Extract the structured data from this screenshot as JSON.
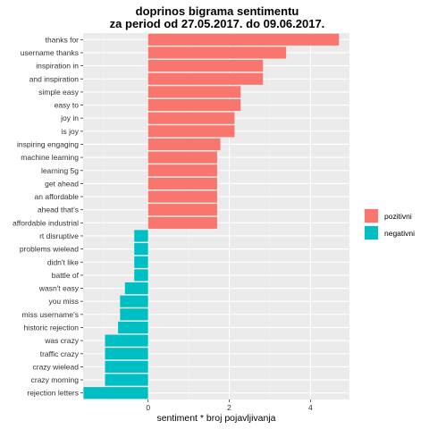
{
  "chart_data": {
    "type": "bar",
    "orientation": "horizontal",
    "title": "doprinos bigrama sentimentu",
    "subtitle": "za period od 27.05.2017. do 09.06.2017.",
    "xlabel": "sentiment * broj pojavljivanja",
    "ylabel": "",
    "xlim": [
      -1.6,
      4.96
    ],
    "xticks": [
      0,
      2,
      4
    ],
    "grid": true,
    "legend_position": "right",
    "series": [
      {
        "name": "pozitivni",
        "color": "#F8766D"
      },
      {
        "name": "negativni",
        "color": "#00BFC4"
      }
    ],
    "bars": [
      {
        "category": "thanks for",
        "value": 4.7,
        "series": "pozitivni"
      },
      {
        "category": "username thanks",
        "value": 3.4,
        "series": "pozitivni"
      },
      {
        "category": "inspiration in",
        "value": 2.83,
        "series": "pozitivni"
      },
      {
        "category": "and inspiration",
        "value": 2.83,
        "series": "pozitivni"
      },
      {
        "category": "simple easy",
        "value": 2.28,
        "series": "pozitivni"
      },
      {
        "category": "easy to",
        "value": 2.28,
        "series": "pozitivni"
      },
      {
        "category": "joy in",
        "value": 2.13,
        "series": "pozitivni"
      },
      {
        "category": "is joy",
        "value": 2.13,
        "series": "pozitivni"
      },
      {
        "category": "inspiring engaging",
        "value": 1.78,
        "series": "pozitivni"
      },
      {
        "category": "machine learning",
        "value": 1.7,
        "series": "pozitivni"
      },
      {
        "category": "learning 5g",
        "value": 1.7,
        "series": "pozitivni"
      },
      {
        "category": "get ahead",
        "value": 1.7,
        "series": "pozitivni"
      },
      {
        "category": "an affordable",
        "value": 1.7,
        "series": "pozitivni"
      },
      {
        "category": "ahead that's",
        "value": 1.7,
        "series": "pozitivni"
      },
      {
        "category": "affordable industrial",
        "value": 1.7,
        "series": "pozitivni"
      },
      {
        "category": "rt disruptive",
        "value": -0.34,
        "series": "negativni"
      },
      {
        "category": "problems wielead",
        "value": -0.34,
        "series": "negativni"
      },
      {
        "category": "didn't like",
        "value": -0.34,
        "series": "negativni"
      },
      {
        "category": "battle of",
        "value": -0.34,
        "series": "negativni"
      },
      {
        "category": "wasn't easy",
        "value": -0.57,
        "series": "negativni"
      },
      {
        "category": "you miss",
        "value": -0.69,
        "series": "negativni"
      },
      {
        "category": "miss username's",
        "value": -0.69,
        "series": "negativni"
      },
      {
        "category": "historic rejection",
        "value": -0.74,
        "series": "negativni"
      },
      {
        "category": "was crazy",
        "value": -1.06,
        "series": "negativni"
      },
      {
        "category": "traffic crazy",
        "value": -1.06,
        "series": "negativni"
      },
      {
        "category": "crazy wielead",
        "value": -1.06,
        "series": "negativni"
      },
      {
        "category": "crazy morning",
        "value": -1.06,
        "series": "negativni"
      },
      {
        "category": "rejection letters",
        "value": -1.59,
        "series": "negativni"
      }
    ]
  }
}
